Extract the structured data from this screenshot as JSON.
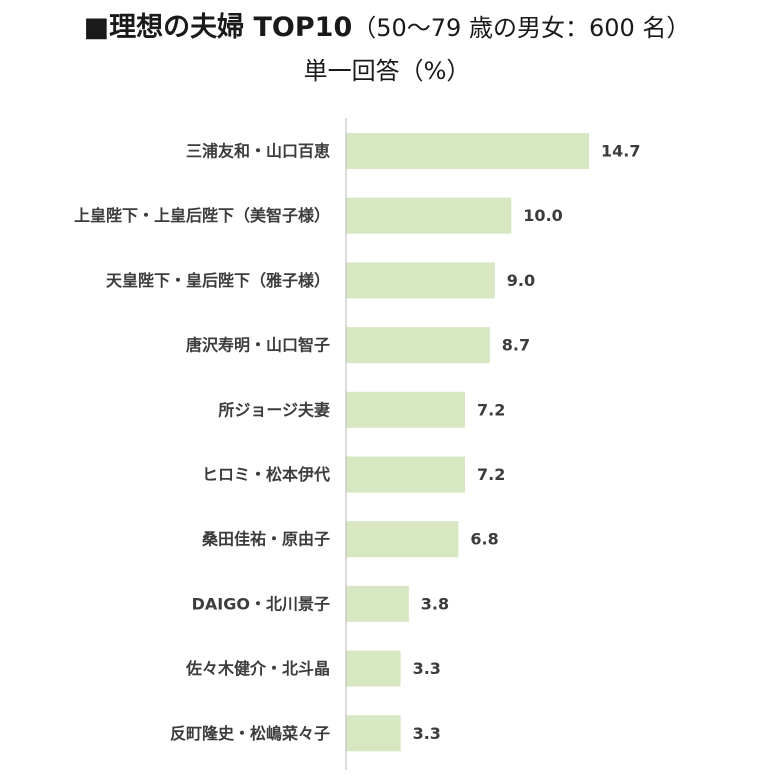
{
  "header": {
    "title": "■理想の夫婦 TOP10",
    "title_note": "（50〜79 歳の男女：600 名）",
    "subtitle": "単一回答（%）"
  },
  "colors": {
    "bar": "#d6e7c2",
    "axis": "#b8b8b8",
    "text": "#3c3c3c"
  },
  "chart_data": {
    "type": "bar",
    "orientation": "horizontal",
    "title": "■理想の夫婦 TOP10（50〜79 歳の男女：600 名）",
    "subtitle": "単一回答（%）",
    "categories": [
      "三浦友和・山口百恵",
      "上皇陛下・上皇后陛下（美智子様）",
      "天皇陛下・皇后陛下（雅子様）",
      "唐沢寿明・山口智子",
      "所ジョージ夫妻",
      "ヒロミ・松本伊代",
      "桑田佳祐・原由子",
      "DAIGO・北川景子",
      "佐々木健介・北斗晶",
      "反町隆史・松嶋菜々子"
    ],
    "values": [
      14.7,
      10.0,
      9.0,
      8.7,
      7.2,
      7.2,
      6.8,
      3.8,
      3.3,
      3.3
    ],
    "value_labels": [
      "14.7",
      "10.0",
      "9.0",
      "8.7",
      "7.2",
      "7.2",
      "6.8",
      "3.8",
      "3.3",
      "3.3"
    ],
    "xlim": [
      0,
      17
    ],
    "grid": false,
    "legend": false
  }
}
